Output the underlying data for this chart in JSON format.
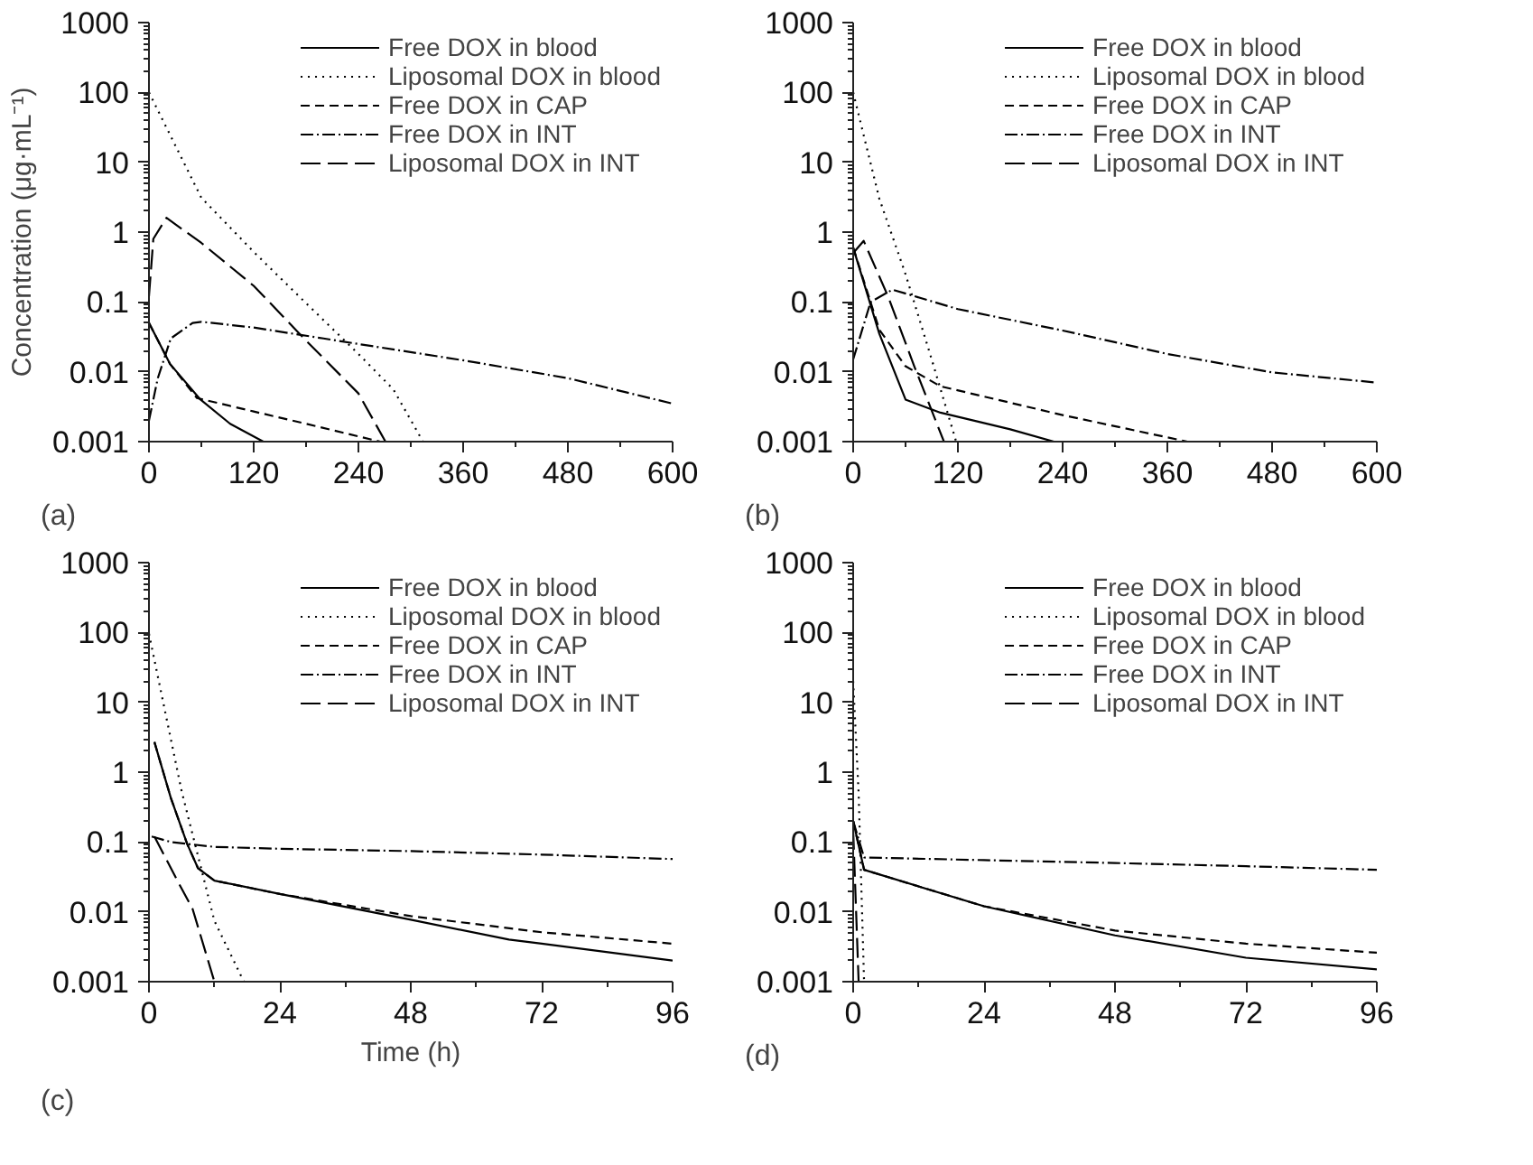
{
  "chart_data": [
    {
      "type": "line",
      "annotations": [
        "(a)"
      ],
      "ylabel": "Concentration (μg·mL⁻¹)",
      "log": "y",
      "legend": "top right",
      "grid": false,
      "xlim": [
        0,
        600
      ],
      "xticks": [
        0,
        120,
        240,
        360,
        480,
        600
      ],
      "ylim": [
        0.001,
        1000
      ],
      "yticks": [
        0.001,
        0.01,
        0.1,
        1,
        10,
        100,
        1000
      ],
      "series": [
        {
          "name": "Free DOX in blood",
          "color": "#000000",
          "line_style": "solid",
          "x": [
            0,
            24,
            59,
            93,
            131
          ],
          "values": [
            0.05,
            0.013,
            0.004,
            0.0018,
            0.001
          ]
        },
        {
          "name": "Liposomal DOX in blood",
          "color": "#000000",
          "line_style": "dotted",
          "x": [
            0,
            60,
            120,
            180,
            240,
            280,
            314
          ],
          "values": [
            100,
            3.1,
            0.52,
            0.096,
            0.018,
            0.0056,
            0.001
          ]
        },
        {
          "name": "Free DOX in CAP",
          "color": "#000000",
          "line_style": "dashed",
          "x": [
            0,
            24,
            55,
            120,
            180,
            265
          ],
          "values": [
            0.05,
            0.013,
            0.0042,
            0.0027,
            0.0018,
            0.001
          ]
        },
        {
          "name": "Free DOX in INT",
          "color": "#000000",
          "line_style": "dashdot",
          "x": [
            0,
            10,
            25,
            50,
            60,
            120,
            200,
            240,
            360,
            480,
            600
          ],
          "values": [
            0.002,
            0.008,
            0.03,
            0.05,
            0.052,
            0.043,
            0.03,
            0.025,
            0.0146,
            0.0081,
            0.0035
          ]
        },
        {
          "name": "Liposomal DOX in INT",
          "color": "#000000",
          "line_style": "longdash",
          "x": [
            0,
            5,
            20,
            60,
            120,
            180,
            240,
            271
          ],
          "values": [
            0.12,
            0.8,
            1.6,
            0.7,
            0.17,
            0.028,
            0.0049,
            0.001
          ]
        }
      ]
    },
    {
      "type": "line",
      "annotations": [
        "(b)"
      ],
      "log": "y",
      "legend": "top right",
      "grid": false,
      "xlim": [
        0,
        600
      ],
      "xticks": [
        0,
        120,
        240,
        360,
        480,
        600
      ],
      "ylim": [
        0.001,
        1000
      ],
      "yticks": [
        0.001,
        0.01,
        0.1,
        1,
        10,
        100,
        1000
      ],
      "series": [
        {
          "name": "Free DOX in blood",
          "color": "#000000",
          "line_style": "solid",
          "x": [
            0,
            30,
            60,
            100,
            180,
            230
          ],
          "values": [
            0.6,
            0.035,
            0.004,
            0.0026,
            0.0015,
            0.001
          ]
        },
        {
          "name": "Liposomal DOX in blood",
          "color": "#000000",
          "line_style": "dotted",
          "x": [
            0,
            30,
            60,
            90,
            118
          ],
          "values": [
            100,
            3,
            0.25,
            0.015,
            0.001
          ]
        },
        {
          "name": "Free DOX in CAP",
          "color": "#000000",
          "line_style": "dashed",
          "x": [
            0,
            30,
            60,
            100,
            240,
            383
          ],
          "values": [
            0.6,
            0.04,
            0.012,
            0.0062,
            0.0024,
            0.001
          ]
        },
        {
          "name": "Free DOX in INT",
          "color": "#000000",
          "line_style": "dashdot",
          "x": [
            0,
            20,
            45,
            120,
            240,
            360,
            480,
            600
          ],
          "values": [
            0.015,
            0.1,
            0.15,
            0.079,
            0.039,
            0.018,
            0.0098,
            0.007
          ]
        },
        {
          "name": "Liposomal DOX in INT",
          "color": "#000000",
          "line_style": "longdash",
          "x": [
            0,
            12,
            40,
            70,
            104
          ],
          "values": [
            0.5,
            0.75,
            0.12,
            0.012,
            0.001
          ]
        }
      ]
    },
    {
      "type": "line",
      "annotations": [
        "(c)"
      ],
      "xlabel": "Time (h)",
      "log": "y",
      "legend": "top right",
      "grid": false,
      "xlim": [
        0,
        96
      ],
      "xticks": [
        0,
        24,
        48,
        72,
        96
      ],
      "ylim": [
        0.001,
        1000
      ],
      "yticks": [
        0.001,
        0.01,
        0.1,
        1,
        10,
        100,
        1000
      ],
      "series": [
        {
          "name": "Free DOX in blood",
          "color": "#000000",
          "line_style": "solid",
          "x": [
            1,
            4,
            7,
            9,
            12,
            24,
            48,
            66,
            72,
            96
          ],
          "values": [
            2.7,
            0.43,
            0.094,
            0.042,
            0.028,
            0.018,
            0.0077,
            0.004,
            0.0035,
            0.002
          ]
        },
        {
          "name": "Liposomal DOX in blood",
          "color": "#000000",
          "line_style": "dotted",
          "x": [
            0,
            6,
            12,
            17.4
          ],
          "values": [
            96,
            0.53,
            0.0074,
            0.001
          ]
        },
        {
          "name": "Free DOX in CAP",
          "color": "#000000",
          "line_style": "dashed",
          "x": [
            1,
            4,
            7,
            9,
            12,
            24,
            48,
            72,
            96
          ],
          "values": [
            2.7,
            0.43,
            0.094,
            0.042,
            0.028,
            0.018,
            0.0087,
            0.0051,
            0.0035
          ]
        },
        {
          "name": "Free DOX in INT",
          "color": "#000000",
          "line_style": "dashdot",
          "x": [
            0.5,
            4,
            12,
            24,
            48,
            72,
            96
          ],
          "values": [
            0.12,
            0.1,
            0.085,
            0.08,
            0.074,
            0.066,
            0.057
          ]
        },
        {
          "name": "Liposomal DOX in INT",
          "color": "#000000",
          "line_style": "longdash",
          "x": [
            1,
            5,
            8,
            12
          ],
          "values": [
            0.12,
            0.03,
            0.011,
            0.001
          ]
        }
      ]
    },
    {
      "type": "line",
      "annotations": [
        "(d)"
      ],
      "log": "y",
      "legend": "top right",
      "grid": false,
      "xlim": [
        0,
        96
      ],
      "xticks": [
        0,
        24,
        48,
        72,
        96
      ],
      "ylim": [
        0.001,
        1000
      ],
      "yticks": [
        0.001,
        0.01,
        0.1,
        1,
        10,
        100,
        1000
      ],
      "series": [
        {
          "name": "Free DOX in blood",
          "color": "#000000",
          "line_style": "solid",
          "x": [
            0,
            2,
            24,
            48,
            72,
            96
          ],
          "values": [
            0.2,
            0.04,
            0.012,
            0.0046,
            0.0022,
            0.0015
          ]
        },
        {
          "name": "Liposomal DOX in blood",
          "color": "#000000",
          "line_style": "dotted",
          "x": [
            0,
            1,
            2
          ],
          "values": [
            20,
            0.5,
            0.001
          ]
        },
        {
          "name": "Free DOX in CAP",
          "color": "#000000",
          "line_style": "dashed",
          "x": [
            0,
            2,
            24,
            48,
            72,
            96
          ],
          "values": [
            0.2,
            0.04,
            0.012,
            0.0054,
            0.0035,
            0.0026
          ]
        },
        {
          "name": "Free DOX in INT",
          "color": "#000000",
          "line_style": "dashdot",
          "x": [
            0,
            2,
            24,
            48,
            72,
            96
          ],
          "values": [
            0.2,
            0.06,
            0.055,
            0.05,
            0.045,
            0.04
          ]
        },
        {
          "name": "Liposomal DOX in INT",
          "color": "#000000",
          "line_style": "longdash",
          "x": [
            0,
            1
          ],
          "values": [
            0.15,
            0.001
          ]
        }
      ]
    }
  ]
}
